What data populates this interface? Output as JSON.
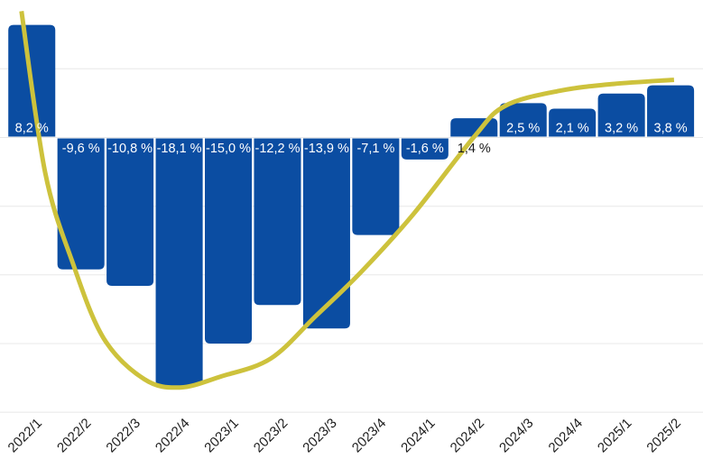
{
  "chart_data": {
    "type": "bar",
    "title": "",
    "xlabel": "",
    "ylabel": "",
    "categories": [
      "2022/1",
      "2022/2",
      "2022/3",
      "2022/4",
      "2023/1",
      "2023/2",
      "2023/3",
      "2023/4",
      "2024/1",
      "2024/2",
      "2024/3",
      "2024/4",
      "2025/1",
      "2025/2"
    ],
    "values": [
      8.2,
      -9.6,
      -10.8,
      -18.1,
      -15.0,
      -12.2,
      -13.9,
      -7.1,
      -1.6,
      1.4,
      2.5,
      2.1,
      3.2,
      3.8
    ],
    "bar_labels": [
      "8,2 %",
      "-9,6 %",
      "-10,8 %",
      "-18,1 %",
      "-15,0 %",
      "-12,2 %",
      "-13,9 %",
      "-7,1 %",
      "-1,6 %",
      "1,4 %",
      "2,5 %",
      "2,1 %",
      "3,2 %",
      "3,8 %"
    ],
    "ylim": [
      -20,
      10
    ],
    "grid_step": 5,
    "grid_values": [
      5,
      0,
      -5,
      -10,
      -15,
      -20
    ],
    "grid_on": true,
    "legend": "none",
    "trend_line": {
      "type": "smoothed-trend-curve",
      "points_category_units": [
        [
          -0.21,
          9.2
        ],
        [
          0.27,
          -2.5
        ],
        [
          0.82,
          -9.0
        ],
        [
          1.46,
          -14.6
        ],
        [
          2.29,
          -17.6
        ],
        [
          3.02,
          -18.2
        ],
        [
          3.85,
          -17.4
        ],
        [
          4.86,
          -16.1
        ],
        [
          5.78,
          -13.0
        ],
        [
          6.7,
          -9.8
        ],
        [
          7.76,
          -5.6
        ],
        [
          8.99,
          0.0
        ],
        [
          9.63,
          2.3
        ],
        [
          10.74,
          3.4
        ],
        [
          11.84,
          3.9
        ],
        [
          13.07,
          4.2
        ]
      ]
    },
    "colors": {
      "bar": "#0b4da2",
      "trend": "#cdc23c",
      "grid": "#e8e8e8",
      "label_inside": "#ffffff",
      "label_outside": "#1a1a1a",
      "axis_text": "#1d1d1d",
      "background": "#ffffff"
    }
  }
}
